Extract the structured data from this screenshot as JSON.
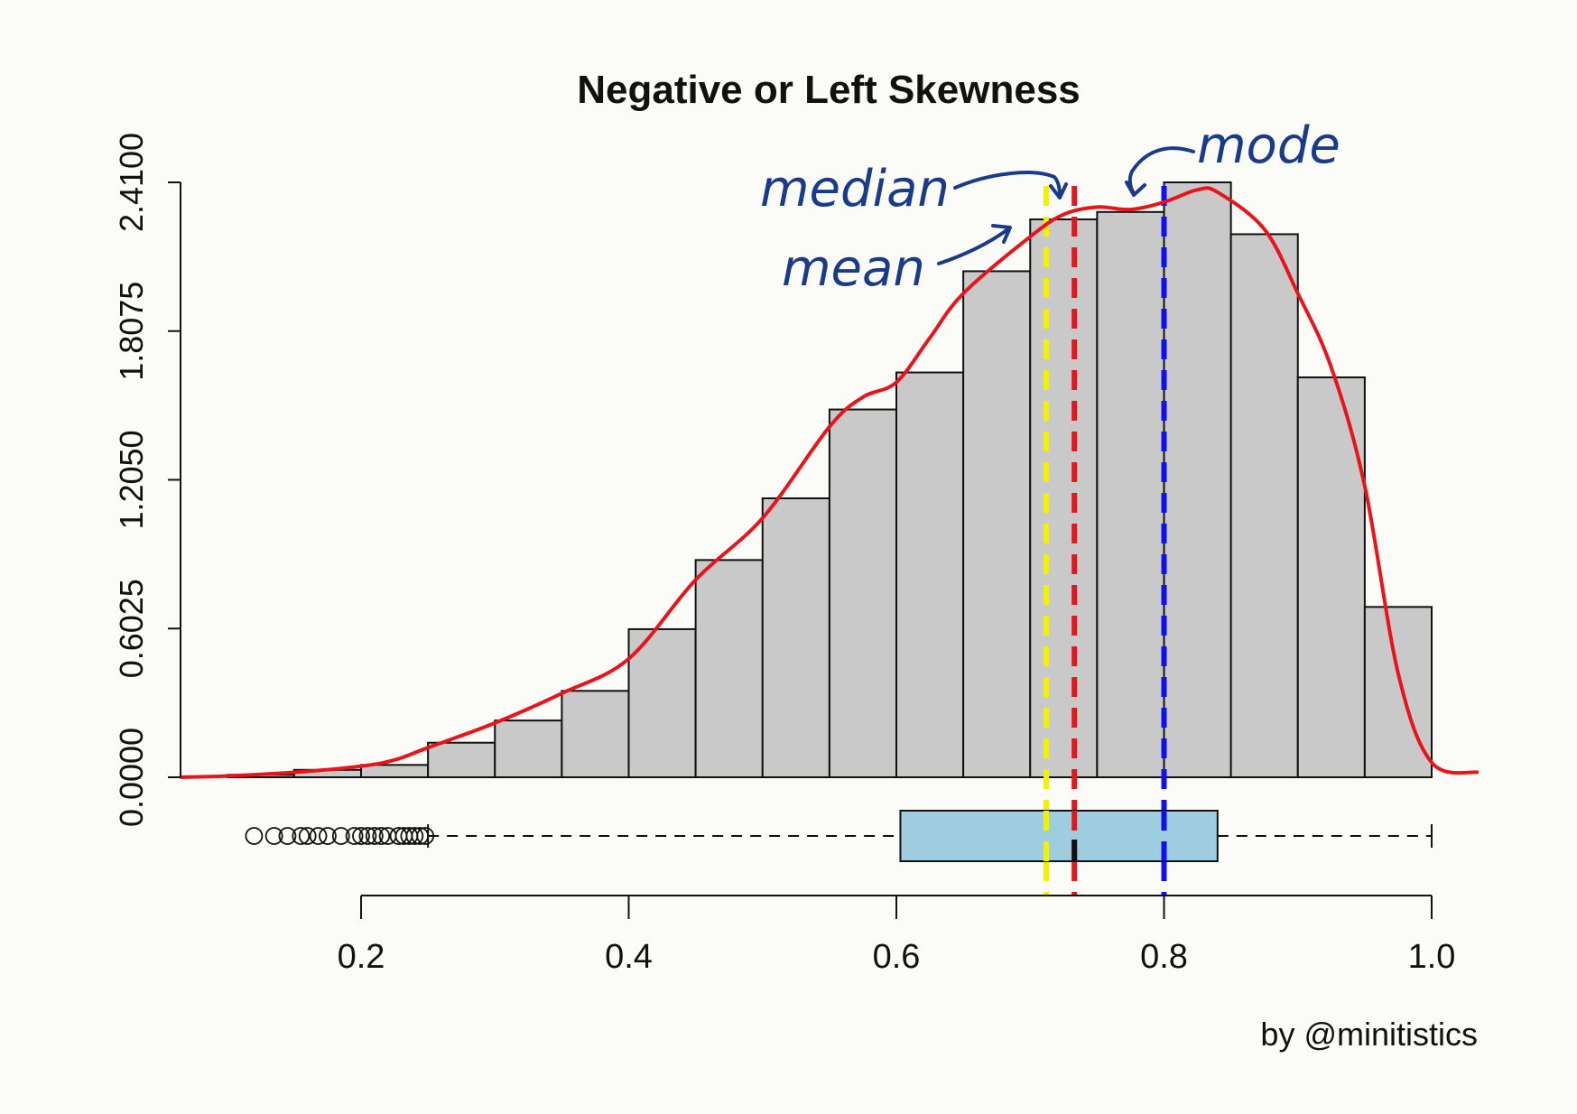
{
  "chart_data": {
    "type": "histogram",
    "title": "Negative or Left Skewness",
    "xlabel": "",
    "ylabel": "",
    "credit": "by @minitistics",
    "ylim": [
      0,
      2.41
    ],
    "xlim": [
      0.2,
      1.0
    ],
    "y_ticks": [
      "0.0000",
      "0.6025",
      "1.2050",
      "1.8075",
      "2.4100"
    ],
    "y_tick_values": [
      0,
      0.6025,
      1.205,
      1.8075,
      2.41
    ],
    "x_ticks": [
      "0.2",
      "0.4",
      "0.6",
      "0.8",
      "1.0"
    ],
    "x_tick_values": [
      0.2,
      0.4,
      0.6,
      0.8,
      1.0
    ],
    "bin_width": 0.05,
    "bins": [
      {
        "start": 0.1,
        "value": 0.01
      },
      {
        "start": 0.15,
        "value": 0.03
      },
      {
        "start": 0.2,
        "value": 0.05
      },
      {
        "start": 0.25,
        "value": 0.14
      },
      {
        "start": 0.3,
        "value": 0.23
      },
      {
        "start": 0.35,
        "value": 0.35
      },
      {
        "start": 0.4,
        "value": 0.6
      },
      {
        "start": 0.45,
        "value": 0.88
      },
      {
        "start": 0.5,
        "value": 1.13
      },
      {
        "start": 0.55,
        "value": 1.49
      },
      {
        "start": 0.6,
        "value": 1.64
      },
      {
        "start": 0.65,
        "value": 2.05
      },
      {
        "start": 0.7,
        "value": 2.26
      },
      {
        "start": 0.75,
        "value": 2.29
      },
      {
        "start": 0.8,
        "value": 2.41
      },
      {
        "start": 0.85,
        "value": 2.2
      },
      {
        "start": 0.9,
        "value": 1.62
      },
      {
        "start": 0.95,
        "value": 0.69
      }
    ],
    "density_curve": {
      "x": [
        0.065,
        0.1,
        0.15,
        0.2,
        0.225,
        0.25,
        0.3,
        0.35,
        0.4,
        0.45,
        0.5,
        0.55,
        0.575,
        0.6,
        0.625,
        0.65,
        0.7,
        0.725,
        0.75,
        0.775,
        0.8,
        0.825,
        0.84,
        0.875,
        0.9,
        0.925,
        0.95,
        0.975,
        1.0,
        1.035
      ],
      "y": [
        0.0,
        0.005,
        0.02,
        0.045,
        0.07,
        0.12,
        0.22,
        0.34,
        0.48,
        0.8,
        1.05,
        1.42,
        1.54,
        1.6,
        1.78,
        1.96,
        2.19,
        2.28,
        2.31,
        2.3,
        2.33,
        2.38,
        2.37,
        2.22,
        1.96,
        1.66,
        1.18,
        0.42,
        0.06,
        0.02
      ],
      "color": "#e8141c"
    },
    "reference_lines": [
      {
        "name": "median",
        "x": 0.733,
        "color": "#e8141c"
      },
      {
        "name": "mean",
        "x": 0.712,
        "color": "#f2f200"
      },
      {
        "name": "mode",
        "x": 0.8,
        "color": "#1010f0"
      }
    ],
    "boxplot": {
      "whisker_low": 0.25,
      "q1": 0.603,
      "median": 0.733,
      "q3": 0.84,
      "whisker_high": 1.0,
      "outliers": [
        0.12,
        0.135,
        0.145,
        0.155,
        0.16,
        0.168,
        0.175,
        0.185,
        0.195,
        0.2,
        0.205,
        0.21,
        0.215,
        0.22,
        0.228,
        0.232,
        0.236,
        0.24,
        0.244,
        0.248
      ],
      "fill": "#9ecde0"
    },
    "annotations": {
      "median": "median",
      "mean": "mean",
      "mode": "mode"
    }
  }
}
